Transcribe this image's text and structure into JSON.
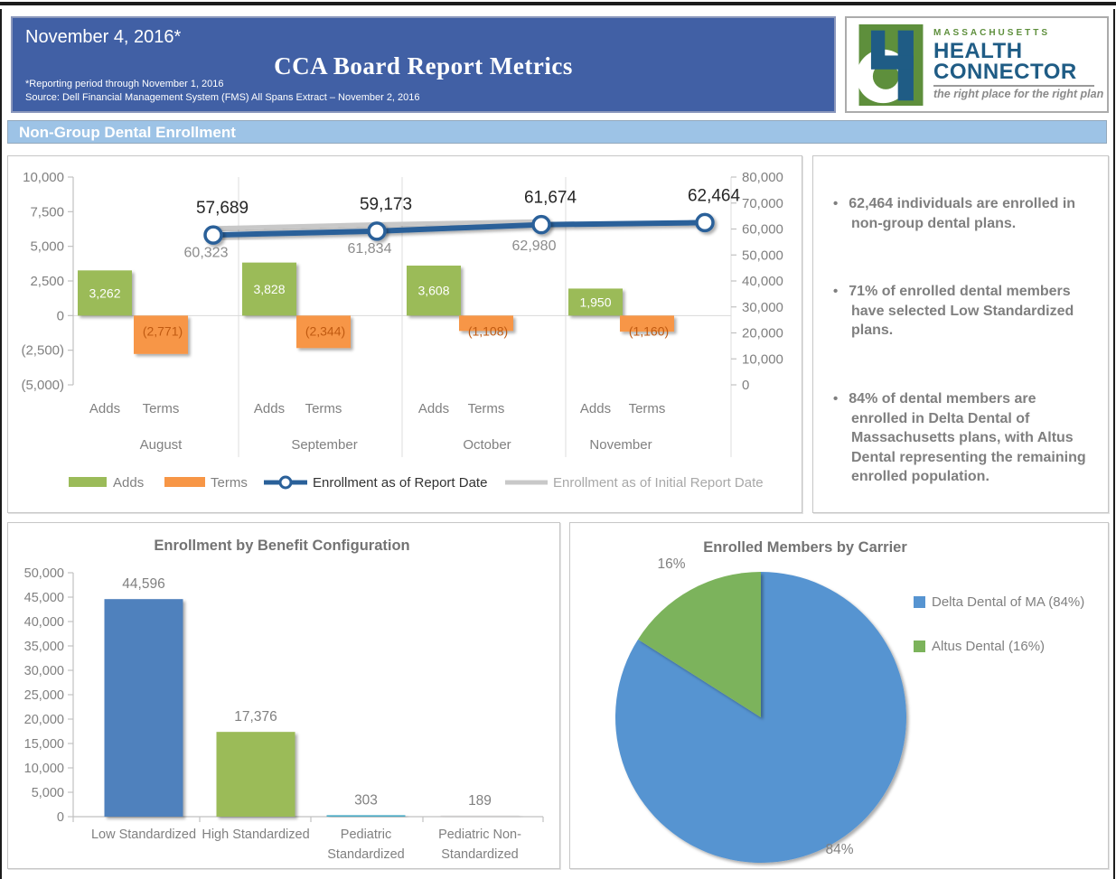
{
  "theme": {
    "header_blue": "#4160A5",
    "section_blue": "#9DC3E6",
    "panel_border": "#C6C6C6",
    "text_gray": "#7F7F7F",
    "axis_gray": "#808080",
    "title_gray": "#737373"
  },
  "header": {
    "date_label": "November 4, 2016*",
    "title": "CCA Board Report Metrics",
    "note_reporting_period": "*Reporting period through November 1, 2016",
    "note_source": "Source: Dell Financial Management System (FMS) All Spans Extract – November 2, 2016"
  },
  "logo": {
    "region": "MASSACHUSETTS",
    "name_line1": "HEALTH",
    "name_line2": "CONNECTOR",
    "tagline": "the right place for the right plan",
    "green": "#5E8F3C",
    "blue": "#1F5C85"
  },
  "section": {
    "title": "Non-Group Dental Enrollment"
  },
  "key_findings": {
    "items": [
      {
        "text": "62,464 individuals are enrolled in non-group dental plans."
      },
      {
        "text": "71% of enrolled dental members have selected Low Standardized plans."
      },
      {
        "text": "84% of dental members are enrolled in Delta Dental of Massachusetts plans, with Altus Dental representing the remaining enrolled population."
      }
    ]
  },
  "chart_data": [
    {
      "type": "bar+line",
      "title": "",
      "categories": [
        "August",
        "September",
        "October",
        "November"
      ],
      "sub_categories": [
        "Adds",
        "Terms"
      ],
      "series": [
        {
          "name": "Adds",
          "chart": "bar",
          "axis": "left",
          "color": "#9BBB59",
          "label_color": "#FFFFFF",
          "values": [
            3262,
            3828,
            3608,
            1950
          ],
          "labels": [
            "3,262",
            "3,828",
            "3,608",
            "1,950"
          ]
        },
        {
          "name": "Terms",
          "chart": "bar",
          "axis": "left",
          "color": "#F79646",
          "label_color": "#C05A11",
          "values": [
            -2771,
            -2344,
            -1108,
            -1160
          ],
          "labels": [
            "(2,771)",
            "(2,344)",
            "(1,108)",
            "(1,160)"
          ]
        },
        {
          "name": "Enrollment as of Report Date",
          "chart": "line",
          "axis": "right",
          "color": "#2A6099",
          "label_color": "#262626",
          "values": [
            57689,
            59173,
            61674,
            62464
          ],
          "labels": [
            "57,689",
            "59,173",
            "61,674",
            "62,464"
          ]
        },
        {
          "name": "Enrollment as of Initial Report Date",
          "chart": "line",
          "axis": "right",
          "color": "#C8C8C8",
          "label_color": "#8C8C8C",
          "values": [
            60323,
            61834,
            62980,
            null
          ],
          "labels": [
            "60,323",
            "61,834",
            "62,980",
            null
          ]
        }
      ],
      "left_axis": {
        "min": -5000,
        "max": 10000,
        "step": 2500,
        "ticks": [
          "10,000",
          "7,500",
          "5,000",
          "2,500",
          "0",
          "(2,500)",
          "(5,000)"
        ]
      },
      "right_axis": {
        "min": 0,
        "max": 80000,
        "step": 10000,
        "ticks": [
          "80,000",
          "70,000",
          "60,000",
          "50,000",
          "40,000",
          "30,000",
          "20,000",
          "10,000",
          "0"
        ]
      },
      "legend_position": "bottom",
      "grid": "zero-line-and-category-separators"
    },
    {
      "type": "bar",
      "title": "Enrollment by Benefit Configuration",
      "categories": [
        "Low Standardized",
        "High Standardized",
        "Pediatric\nStandardized",
        "Pediatric Non-\nStandardized"
      ],
      "values": [
        44596,
        17376,
        303,
        189
      ],
      "labels": [
        "44,596",
        "17,376",
        "303",
        "189"
      ],
      "colors": [
        "#4F81BD",
        "#9BBB59",
        "#4BACC6",
        "#D0CECE"
      ],
      "xlabel": "",
      "ylabel": "",
      "ylim": [
        0,
        50000
      ],
      "ystep": 5000,
      "yticks": [
        "50,000",
        "45,000",
        "40,000",
        "35,000",
        "30,000",
        "25,000",
        "20,000",
        "15,000",
        "10,000",
        "5,000",
        "0"
      ],
      "grid": false,
      "legend_position": "none"
    },
    {
      "type": "pie",
      "title": "Enrolled Members by Carrier",
      "slices": [
        {
          "name": "Delta Dental of MA",
          "legend": "Delta Dental of MA (84%)",
          "value": 84,
          "label": "84%",
          "color": "#5694D1"
        },
        {
          "name": "Altus Dental",
          "legend": "Altus Dental (16%)",
          "value": 16,
          "label": "16%",
          "color": "#7CB35B"
        }
      ],
      "start_angle_deg": -90,
      "direction": "clockwise",
      "legend_position": "right"
    }
  ]
}
